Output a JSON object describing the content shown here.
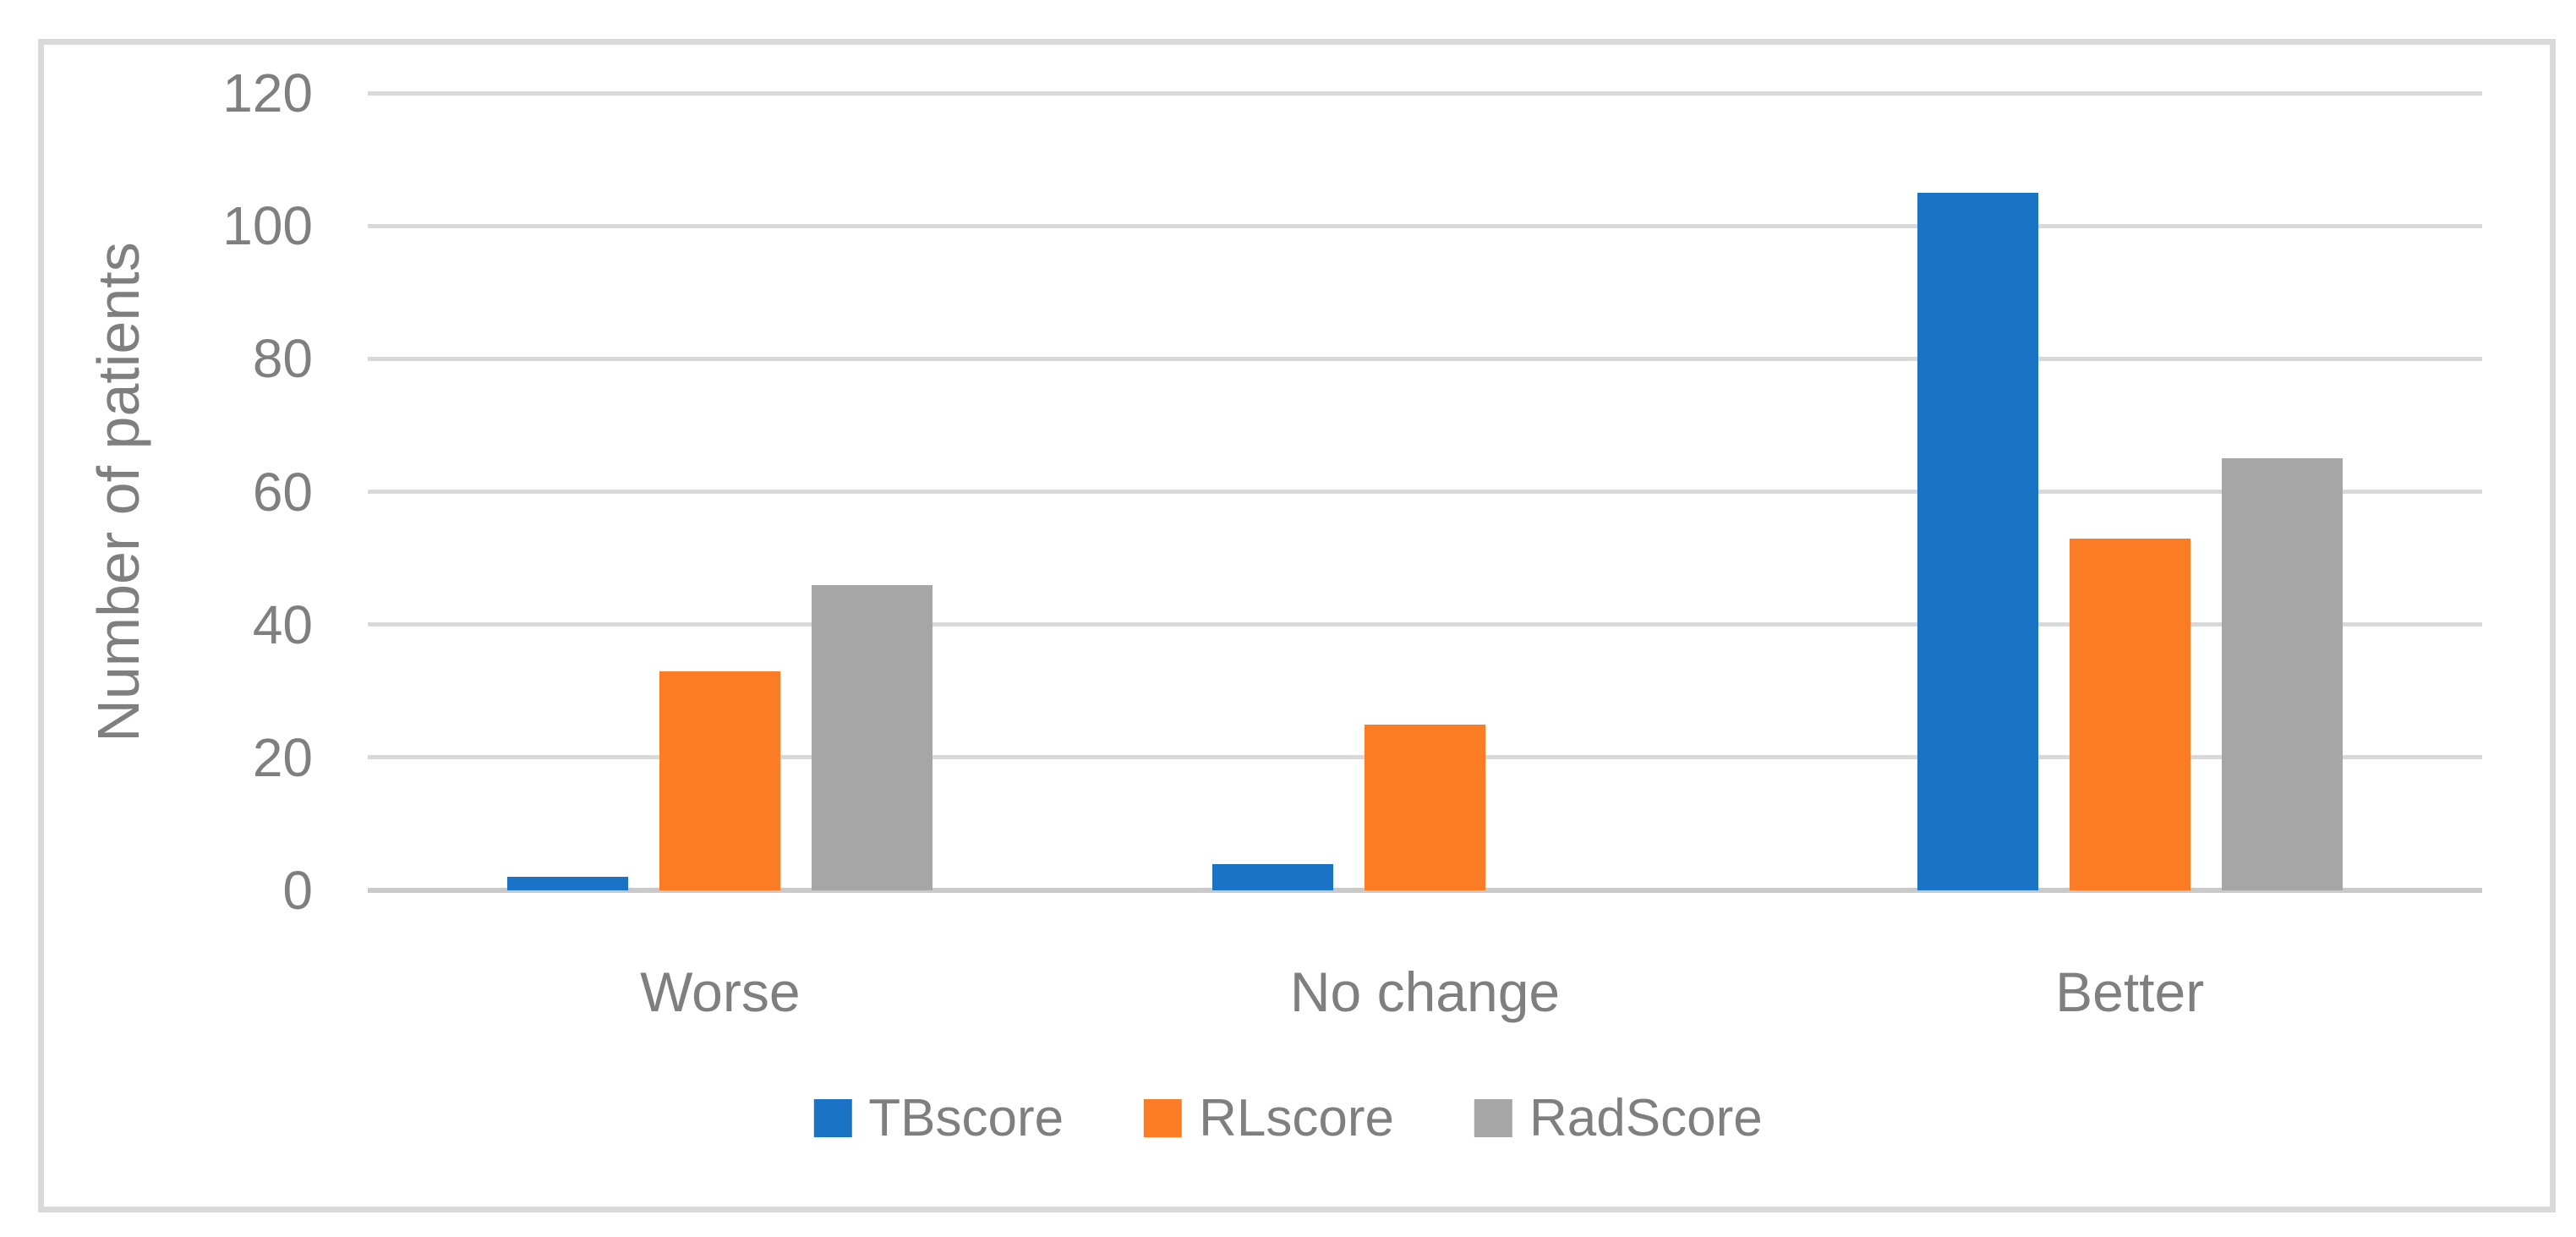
{
  "figure": {
    "background_color": "#FFFFFF",
    "border_color": "#D9D9D9",
    "text_color": "#7F7F7F",
    "gridline_color": "#D9D9D9"
  },
  "chart_data": {
    "type": "bar",
    "title": "",
    "xlabel": "",
    "ylabel": "Number of patients",
    "categories": [
      "Worse",
      "No change",
      "Better"
    ],
    "series": [
      {
        "name": "TBscore",
        "color": "#1B73C6",
        "values": [
          2,
          4,
          105
        ]
      },
      {
        "name": "RLscore",
        "color": "#FC7C26",
        "values": [
          33,
          25,
          53
        ]
      },
      {
        "name": "RadScore",
        "color": "#A6A6A6",
        "values": [
          46,
          0,
          65
        ]
      }
    ],
    "ylim": [
      0,
      120
    ],
    "yticks": [
      0,
      20,
      40,
      60,
      80,
      100,
      120
    ],
    "grid": true,
    "legend_position": "bottom"
  }
}
